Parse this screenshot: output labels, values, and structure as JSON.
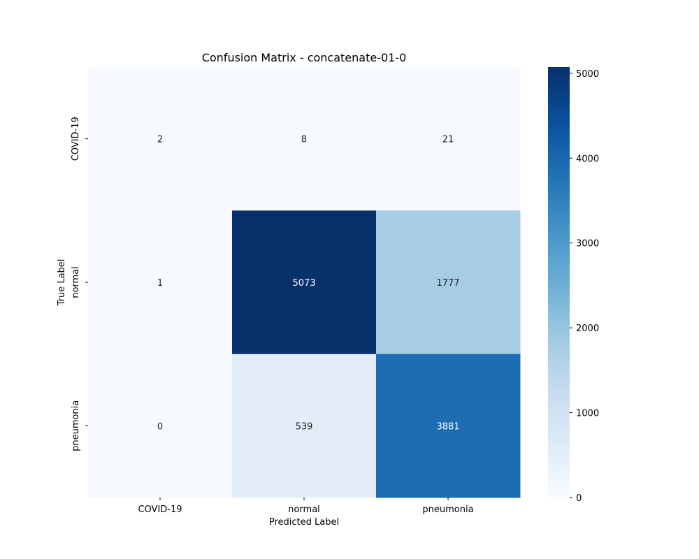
{
  "chart_data": {
    "type": "heatmap",
    "title": "Confusion Matrix - concatenate-01-0",
    "xlabel": "Predicted Label",
    "ylabel": "True Label",
    "x_categories": [
      "COVID-19",
      "normal",
      "pneumonia"
    ],
    "y_categories": [
      "COVID-19",
      "normal",
      "pneumonia"
    ],
    "values": [
      [
        2,
        8,
        21
      ],
      [
        1,
        5073,
        1777
      ],
      [
        0,
        539,
        3881
      ]
    ],
    "colormap": "Blues",
    "value_range": [
      0,
      5073
    ],
    "colorbar_ticks": [
      0,
      1000,
      2000,
      3000,
      4000,
      5000
    ],
    "colors": {
      "low": "#f7fbff",
      "high": "#08306b",
      "annot_dark": "#262626",
      "annot_light": "#ffffff"
    }
  }
}
